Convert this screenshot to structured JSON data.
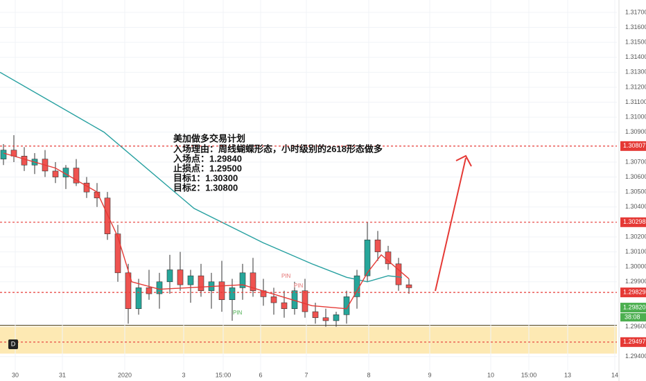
{
  "chart_data": {
    "type": "candlestick",
    "annotation_lines": [
      "美加做多交易计划",
      "入场理由：周线蝴蝶形态，小时级别的2618形态做多",
      "入场点：1.29840",
      "止损点：1.29500",
      "目标1：1.30300",
      "目标2：1.30800"
    ],
    "pin_labels": [
      "PIN",
      "PIN",
      "PIN"
    ],
    "badge": "D",
    "timer": "38:08",
    "xlim": [
      0,
      178
    ],
    "ylim": [
      1.29237,
      1.31783
    ],
    "xticks": [
      {
        "value": 4.4,
        "label": "30"
      },
      {
        "value": 18,
        "label": "31"
      },
      {
        "value": 36,
        "label": "2020"
      },
      {
        "value": 53,
        "label": "3"
      },
      {
        "value": 64.4,
        "label": "15:00"
      },
      {
        "value": 75.2,
        "label": "6"
      },
      {
        "value": 88.4,
        "label": "7"
      },
      {
        "value": 106.4,
        "label": "8"
      },
      {
        "value": 124,
        "label": "9"
      },
      {
        "value": 141.6,
        "label": "10"
      },
      {
        "value": 152.6,
        "label": "15:00"
      },
      {
        "value": 163.8,
        "label": "13"
      },
      {
        "value": 177.4,
        "label": "14"
      }
    ],
    "yticks": [
      {
        "value": 1.317,
        "label": "1.31700"
      },
      {
        "value": 1.316,
        "label": "1.31600"
      },
      {
        "value": 1.315,
        "label": "1.31500"
      },
      {
        "value": 1.314,
        "label": "1.31400"
      },
      {
        "value": 1.313,
        "label": "1.31300"
      },
      {
        "value": 1.312,
        "label": "1.31200"
      },
      {
        "value": 1.311,
        "label": "1.31100"
      },
      {
        "value": 1.31,
        "label": "1.31000"
      },
      {
        "value": 1.309,
        "label": "1.30900"
      },
      {
        "value": 1.307,
        "label": "1.30700"
      },
      {
        "value": 1.306,
        "label": "1.30600"
      },
      {
        "value": 1.305,
        "label": "1.30500"
      },
      {
        "value": 1.304,
        "label": "1.30400"
      },
      {
        "value": 1.302,
        "label": "1.30200"
      },
      {
        "value": 1.301,
        "label": "1.30100"
      },
      {
        "value": 1.3,
        "label": "1.30000"
      },
      {
        "value": 1.299,
        "label": "1.29900"
      },
      {
        "value": 1.296,
        "label": "1.29600"
      },
      {
        "value": 1.294,
        "label": "1.29400"
      }
    ],
    "levels": [
      {
        "value": 1.30807,
        "label": "1.30807",
        "color": "#e53935"
      },
      {
        "value": 1.30298,
        "label": "1.30298",
        "color": "#e53935"
      },
      {
        "value": 1.29829,
        "label": "1.29829",
        "color": "#e53935"
      },
      {
        "value": 1.29497,
        "label": "1.29497",
        "color": "#e53935"
      }
    ],
    "current_bid": {
      "value": 1.2982,
      "label": "1.29820",
      "color": "#4caf50"
    },
    "zone": {
      "from": 1.2961,
      "to": 1.2942,
      "color": "#fde3a0"
    },
    "up_color": "#26a69a",
    "down_color": "#ef5350",
    "candles": [
      [
        1,
        1.3072,
        1.3082,
        1.3068,
        1.3078
      ],
      [
        4,
        1.3078,
        1.3088,
        1.307,
        1.3074
      ],
      [
        7,
        1.3074,
        1.308,
        1.3064,
        1.3068
      ],
      [
        10,
        1.3068,
        1.3076,
        1.3062,
        1.3072
      ],
      [
        13,
        1.3072,
        1.3078,
        1.306,
        1.3064
      ],
      [
        16,
        1.3064,
        1.307,
        1.3056,
        1.306
      ],
      [
        19,
        1.306,
        1.3068,
        1.3052,
        1.3066
      ],
      [
        22,
        1.3066,
        1.3072,
        1.3054,
        1.3056
      ],
      [
        25,
        1.3056,
        1.306,
        1.3046,
        1.305
      ],
      [
        28,
        1.305,
        1.3056,
        1.304,
        1.3046
      ],
      [
        31,
        1.3046,
        1.305,
        1.3018,
        1.3022
      ],
      [
        34,
        1.3022,
        1.3028,
        1.299,
        1.2996
      ],
      [
        37,
        1.2996,
        1.3002,
        1.2962,
        1.2972
      ],
      [
        40,
        1.2972,
        1.2992,
        1.2968,
        1.2986
      ],
      [
        43,
        1.2986,
        1.2998,
        1.2978,
        1.2982
      ],
      [
        46,
        1.2982,
        1.2996,
        1.2972,
        1.299
      ],
      [
        49,
        1.299,
        1.3008,
        1.2982,
        1.2998
      ],
      [
        52,
        1.2998,
        1.301,
        1.2984,
        1.2988
      ],
      [
        55,
        1.2988,
        1.2998,
        1.2976,
        1.2994
      ],
      [
        58,
        1.2994,
        1.3002,
        1.298,
        1.2984
      ],
      [
        61,
        1.2984,
        1.2996,
        1.2972,
        1.299
      ],
      [
        64,
        1.299,
        1.3004,
        1.297,
        1.2978
      ],
      [
        67,
        1.2978,
        1.2992,
        1.2964,
        1.2986
      ],
      [
        70,
        1.2986,
        1.3002,
        1.2978,
        1.2996
      ],
      [
        73,
        1.2996,
        1.3006,
        1.298,
        1.2984
      ],
      [
        76,
        1.2984,
        1.2992,
        1.2974,
        1.298
      ],
      [
        79,
        1.298,
        1.2986,
        1.2968,
        1.2976
      ],
      [
        82,
        1.2976,
        1.2984,
        1.2966,
        1.2972
      ],
      [
        85,
        1.2972,
        1.299,
        1.2968,
        1.2984
      ],
      [
        88,
        1.2984,
        1.2992,
        1.2966,
        1.297
      ],
      [
        91,
        1.297,
        1.2976,
        1.2962,
        1.2966
      ],
      [
        94,
        1.2966,
        1.2972,
        1.296,
        1.2964
      ],
      [
        97,
        1.2964,
        1.297,
        1.296,
        1.2968
      ],
      [
        100,
        1.2968,
        1.2984,
        1.2962,
        1.298
      ],
      [
        103,
        1.298,
        1.2998,
        1.2972,
        1.2994
      ],
      [
        106,
        1.2994,
        1.303,
        1.299,
        1.3018
      ],
      [
        109,
        1.3018,
        1.3024,
        1.3004,
        1.301
      ],
      [
        112,
        1.301,
        1.3014,
        1.2998,
        1.3002
      ],
      [
        115,
        1.3002,
        1.3006,
        1.2984,
        1.2988
      ],
      [
        118,
        1.2988,
        1.2992,
        1.2982,
        1.2986
      ]
    ],
    "series": [
      {
        "color": "#26a0a0",
        "x": [
          0,
          30,
          56,
          76,
          90,
          100,
          106,
          112,
          116
        ],
        "values": [
          1.313,
          1.309,
          1.3039,
          1.3016,
          1.3002,
          1.2993,
          1.299,
          1.2994,
          1.2993
        ]
      },
      {
        "color": "#e53935",
        "x": [
          1,
          16,
          28,
          34,
          38,
          46,
          70,
          90,
          100,
          106,
          110,
          118
        ],
        "values": [
          1.3076,
          1.3066,
          1.305,
          1.302,
          1.299,
          1.2985,
          1.2988,
          1.2974,
          1.2972,
          1.2996,
          1.3008,
          1.2992
        ]
      }
    ]
  }
}
